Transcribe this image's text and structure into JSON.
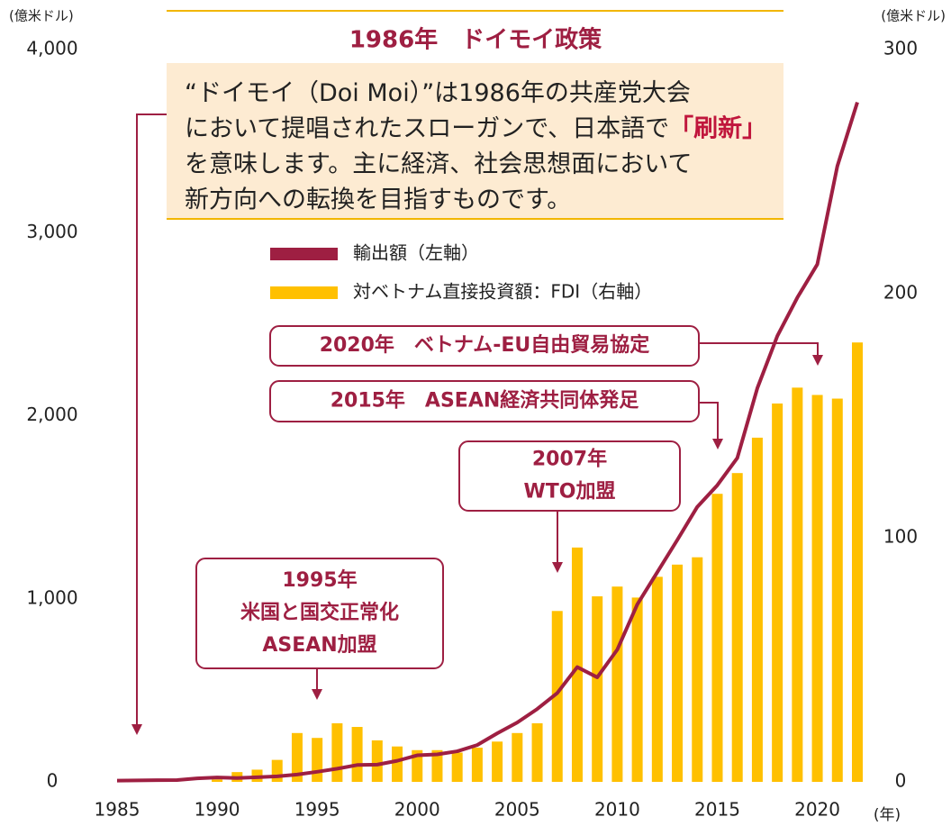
{
  "chart_data": {
    "type": "bar",
    "y_unit": "(億米ドル)",
    "y2_unit": "(億米ドル)",
    "x_unit": "(年)",
    "x": [
      1985,
      1986,
      1987,
      1988,
      1989,
      1990,
      1991,
      1992,
      1993,
      1994,
      1995,
      1996,
      1997,
      1998,
      1999,
      2000,
      2001,
      2002,
      2003,
      2004,
      2005,
      2006,
      2007,
      2008,
      2009,
      2010,
      2011,
      2012,
      2013,
      2014,
      2015,
      2016,
      2017,
      2018,
      2019,
      2020,
      2021,
      2022
    ],
    "xlim": [
      1985,
      2022
    ],
    "xticks": [
      1985,
      1990,
      1995,
      2000,
      2005,
      2010,
      2015,
      2020
    ],
    "ylim": [
      0,
      4000
    ],
    "yticks": [
      0,
      {
        "value": 1000,
        "label": "1,000"
      },
      {
        "value": 2000,
        "label": "2,000"
      },
      {
        "value": 3000,
        "label": "3,000"
      },
      {
        "value": 4000,
        "label": "4,000"
      }
    ],
    "y2lim": [
      0,
      300
    ],
    "y2ticks": [
      0,
      100,
      200,
      300
    ],
    "series": [
      {
        "name": "輸出額（左軸）",
        "type": "line",
        "color": "#9e1f42",
        "values": [
          7,
          8,
          9,
          10,
          19,
          24,
          21,
          25,
          30,
          40,
          55,
          72,
          92,
          94,
          115,
          145,
          150,
          167,
          201,
          265,
          324,
          398,
          485,
          627,
          571,
          722,
          969,
          1145,
          1321,
          1502,
          1620,
          1769,
          2150,
          2435,
          2645,
          2827,
          3363,
          3712
        ]
      },
      {
        "name": "対ベトナム直接投資額：FDI（右軸）",
        "type": "bar",
        "axis": "y2",
        "color": "#ffc000",
        "values": [
          null,
          null,
          null,
          null,
          null,
          1,
          4,
          5,
          9,
          20,
          18,
          24,
          22.5,
          17,
          14.5,
          13,
          13,
          12,
          14,
          16.5,
          20,
          24,
          70,
          96,
          76,
          80,
          75.5,
          84,
          89,
          92,
          118,
          126.5,
          141,
          155,
          161.5,
          158.5,
          157,
          180
        ]
      }
    ],
    "doimoi": {
      "title": "1986年　ドイモイ政策",
      "lines": [
        [
          {
            "text": "“ドイモイ（Doi Moi）”は1986年の共産党大会"
          }
        ],
        [
          {
            "text": "において提唱されたスローガンで、日本語で"
          },
          {
            "text": "「刷新」",
            "emphasis": true
          }
        ],
        [
          {
            "text": "を意味します。主に経済、社会思想面において"
          }
        ],
        [
          {
            "text": "新方向への転換を目指すものです。"
          }
        ]
      ]
    },
    "annotations": [
      {
        "lines": [
          "2020年　ベトナム-EU自由貿易協定"
        ]
      },
      {
        "lines": [
          "2015年　ASEAN経済共同体発足"
        ]
      },
      {
        "lines": [
          "2007年",
          "WTO加盟"
        ]
      },
      {
        "lines": [
          "1995年",
          "米国と国交正常化",
          "ASEAN加盟"
        ]
      }
    ]
  }
}
